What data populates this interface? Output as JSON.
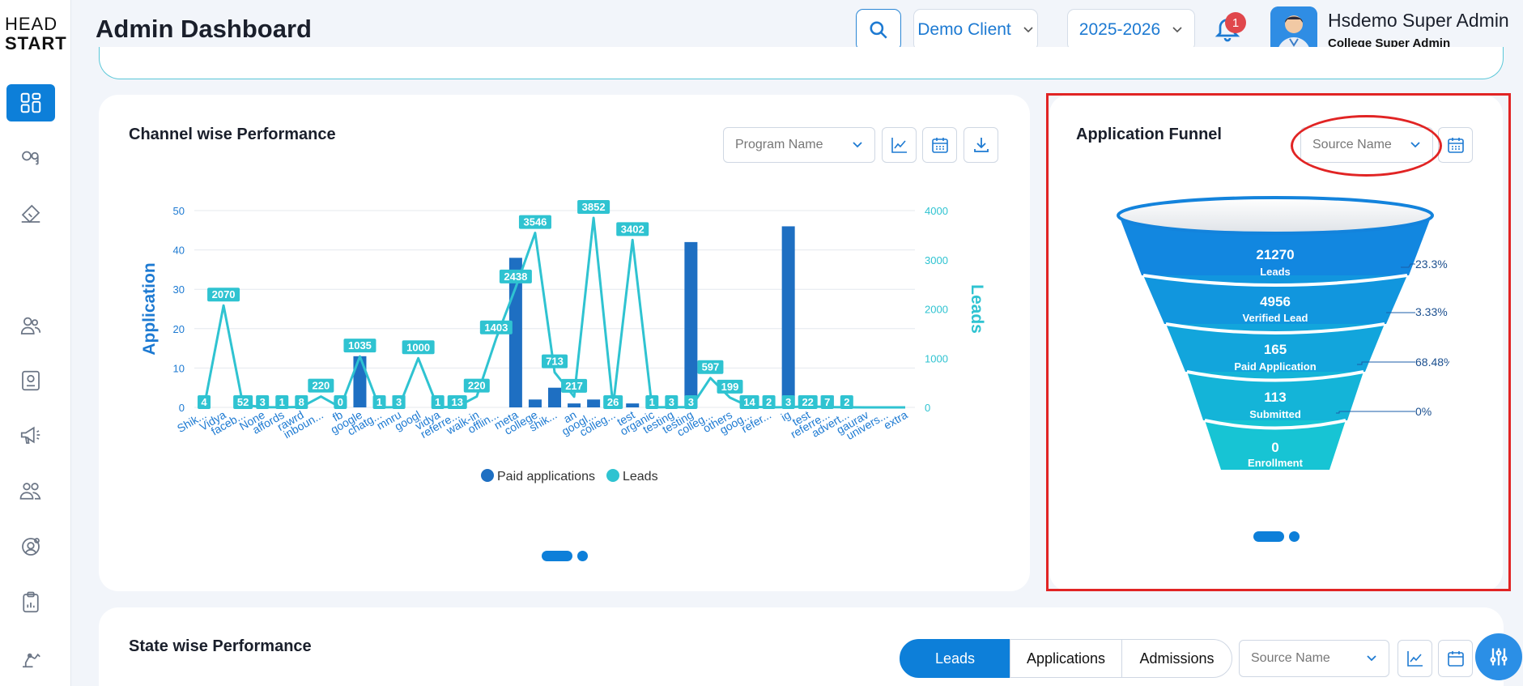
{
  "app": {
    "logo_top": "HEAD",
    "logo_bottom": "START"
  },
  "header": {
    "title": "Admin Dashboard",
    "client": "Demo Client",
    "year": "2025-2026",
    "notifications": "1",
    "user_name": "Hsdemo Super Admin",
    "user_role": "College Super Admin"
  },
  "sidebar": {
    "items": [
      "dashboard-icon",
      "keys-icon",
      "tag-icon",
      "users-icon",
      "profile-card-icon",
      "megaphone-icon",
      "team-icon",
      "settings-user-icon",
      "clipboard-chart-icon",
      "robot-arm-icon"
    ]
  },
  "channel_card": {
    "title": "Channel wise Performance",
    "program_placeholder": "Program Name",
    "legend": [
      "Paid applications",
      "Leads"
    ]
  },
  "funnel_card": {
    "title": "Application Funnel",
    "source_placeholder": "Source Name",
    "stages": [
      {
        "value": "21270",
        "label": "Leads"
      },
      {
        "value": "4956",
        "label": "Verified Lead"
      },
      {
        "value": "165",
        "label": "Paid Application"
      },
      {
        "value": "113",
        "label": "Submitted"
      },
      {
        "value": "0",
        "label": "Enrollment"
      }
    ],
    "conversions": [
      "23.3%",
      "3.33%",
      "68.48%",
      "0%"
    ]
  },
  "state_card": {
    "title": "State wise Performance",
    "tabs": [
      "Leads",
      "Applications",
      "Admissions"
    ],
    "active_tab": "Leads",
    "source_placeholder": "Source Name"
  },
  "colors": {
    "accent": "#0d7fd9",
    "leads_line": "#2fc3d1",
    "bars": "#1e6fc2",
    "highlight": "#e12424"
  },
  "chart_data": {
    "type": "bar",
    "title": "Channel wise Performance",
    "ylabel": "Application",
    "y2label": "Leads",
    "ylim": [
      0,
      50
    ],
    "y2lim": [
      0,
      4000
    ],
    "yticks": [
      "0",
      "10",
      "20",
      "30",
      "40",
      "50"
    ],
    "y2ticks": [
      "0",
      "1000",
      "2000",
      "3000",
      "4000"
    ],
    "categories": [
      "Shik...",
      "Vidya",
      "faceb...",
      "None",
      "affords",
      "rawrd",
      "inboun...",
      "fb",
      "google",
      "chatg...",
      "mnru",
      "googl",
      "vidya",
      "referre...",
      "walk-in",
      "offlin...",
      "meta",
      "college",
      "shik...",
      "an",
      "googl...",
      "colleg...",
      "test",
      "organic",
      "testing",
      "testing",
      "colleg...",
      "others",
      "goog...",
      "refer...",
      "ig",
      "test",
      "referre...",
      "advert...",
      "gaurav",
      "univers...",
      "extra"
    ],
    "series": [
      {
        "name": "Paid applications",
        "values": [
          0,
          0,
          0,
          0,
          0,
          0,
          0,
          2,
          13,
          0,
          3,
          0,
          0,
          0,
          0,
          0,
          38,
          2,
          5,
          1,
          2,
          0,
          1,
          0,
          0,
          42,
          0,
          0,
          0,
          0,
          46,
          2,
          3,
          0,
          0,
          0,
          0
        ]
      },
      {
        "name": "Leads",
        "values": [
          4,
          2070,
          52,
          3,
          1,
          8,
          220,
          0,
          1035,
          1,
          3,
          1000,
          1,
          13,
          220,
          1403,
          2438,
          3546,
          713,
          217,
          3852,
          26,
          3402,
          1,
          3,
          3,
          597,
          199,
          14,
          2,
          3,
          22,
          7,
          2,
          0,
          0,
          0
        ]
      }
    ]
  }
}
